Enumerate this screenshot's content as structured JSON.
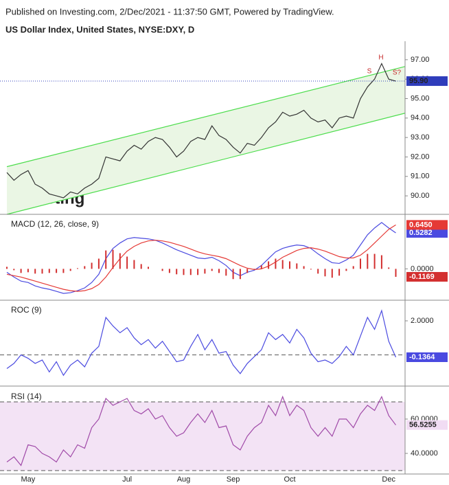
{
  "header": {
    "published": "Published on Investing.com, 2/Dec/2021 - 11:37:50 GMT, Powered by TradingView."
  },
  "watermark": "Investing",
  "chart_data": [
    {
      "type": "line",
      "title": "US Dollar Index, United States, NYSE:DXY, D",
      "categories": [
        null,
        null,
        null,
        "May",
        null,
        null,
        null,
        null,
        null,
        null,
        null,
        null,
        null,
        null,
        null,
        null,
        null,
        "Jul",
        null,
        null,
        null,
        null,
        null,
        null,
        null,
        "Aug",
        null,
        null,
        null,
        null,
        null,
        null,
        "Sep",
        null,
        null,
        null,
        null,
        null,
        null,
        null,
        "Oct",
        null,
        null,
        null,
        null,
        null,
        null,
        null,
        null,
        null,
        null,
        null,
        null,
        null,
        "Dec",
        null
      ],
      "series": [
        {
          "name": "DXY",
          "color": "#333333",
          "last_label": "95.90",
          "label_color": "#2f3dbb",
          "values": [
            91.2,
            90.8,
            91.1,
            91.3,
            90.6,
            90.4,
            90.1,
            90.0,
            89.9,
            90.2,
            90.1,
            90.4,
            90.6,
            90.9,
            92.0,
            91.9,
            91.8,
            92.3,
            92.6,
            92.4,
            92.8,
            93.0,
            92.9,
            92.5,
            92.0,
            92.3,
            92.8,
            93.0,
            92.9,
            93.6,
            93.1,
            92.9,
            92.5,
            92.2,
            92.7,
            92.6,
            93.0,
            93.5,
            93.8,
            94.3,
            94.1,
            94.2,
            94.4,
            94.0,
            93.8,
            93.9,
            93.5,
            94.0,
            94.1,
            94.0,
            95.0,
            95.6,
            96.0,
            96.8,
            96.0,
            95.9
          ]
        }
      ],
      "channel": {
        "color": "#4cdd4c",
        "upper": [
          91.5,
          96.65
        ],
        "lower": [
          89.05,
          94.25
        ]
      },
      "annotations": [
        "S",
        "H",
        "S?"
      ],
      "ylim": [
        89.05,
        97.95
      ],
      "yticks": [
        {
          "value": 90,
          "label": "90.00"
        },
        {
          "value": 91,
          "label": "91.00"
        },
        {
          "value": 92,
          "label": "92.00"
        },
        {
          "value": 93,
          "label": "93.00"
        },
        {
          "value": 94,
          "label": "94.00"
        },
        {
          "value": 95,
          "label": "95.00"
        },
        {
          "value": 96,
          "label": "96.00"
        },
        {
          "value": 97,
          "label": "97.00"
        }
      ]
    },
    {
      "type": "line",
      "title": "MACD (12, 26, close, 9)",
      "series": [
        {
          "name": "MACD",
          "color": "#4a4ae0",
          "last_label": "0.5282",
          "values": [
            -0.05,
            -0.12,
            -0.18,
            -0.2,
            -0.25,
            -0.28,
            -0.3,
            -0.33,
            -0.36,
            -0.35,
            -0.32,
            -0.28,
            -0.2,
            -0.08,
            0.15,
            0.3,
            0.38,
            0.44,
            0.46,
            0.45,
            0.44,
            0.42,
            0.38,
            0.33,
            0.28,
            0.24,
            0.2,
            0.16,
            0.15,
            0.17,
            0.12,
            0.05,
            -0.05,
            -0.1,
            -0.05,
            -0.02,
            0.05,
            0.15,
            0.25,
            0.3,
            0.33,
            0.35,
            0.34,
            0.3,
            0.22,
            0.15,
            0.09,
            0.08,
            0.13,
            0.2,
            0.35,
            0.5,
            0.6,
            0.68,
            0.6,
            0.5282
          ]
        },
        {
          "name": "Signal",
          "color": "#e53935",
          "last_label": "0.6450",
          "values": [
            -0.08,
            -0.1,
            -0.12,
            -0.15,
            -0.18,
            -0.21,
            -0.24,
            -0.27,
            -0.3,
            -0.32,
            -0.33,
            -0.32,
            -0.29,
            -0.23,
            -0.12,
            0.02,
            0.15,
            0.26,
            0.33,
            0.38,
            0.41,
            0.42,
            0.41,
            0.39,
            0.36,
            0.33,
            0.29,
            0.25,
            0.22,
            0.2,
            0.18,
            0.15,
            0.1,
            0.05,
            0.01,
            -0.01,
            0,
            0.04,
            0.1,
            0.17,
            0.22,
            0.27,
            0.3,
            0.31,
            0.29,
            0.26,
            0.22,
            0.18,
            0.16,
            0.16,
            0.2,
            0.28,
            0.38,
            0.48,
            0.58,
            0.645
          ]
        },
        {
          "name": "Histogram",
          "type": "bar",
          "color": "#d32f2f",
          "last_label": "-0.1169",
          "values": [
            0.03,
            -0.02,
            -0.06,
            -0.05,
            -0.07,
            -0.07,
            -0.06,
            -0.06,
            -0.06,
            -0.03,
            0.01,
            0.04,
            0.09,
            0.15,
            0.27,
            0.28,
            0.23,
            0.18,
            0.13,
            0.07,
            0.03,
            0,
            -0.03,
            -0.06,
            -0.08,
            -0.09,
            -0.09,
            -0.09,
            -0.07,
            -0.03,
            -0.06,
            -0.1,
            -0.15,
            -0.15,
            -0.06,
            -0.01,
            0.05,
            0.11,
            0.15,
            0.13,
            0.11,
            0.08,
            0.04,
            -0.01,
            -0.07,
            -0.11,
            -0.13,
            -0.1,
            -0.03,
            0.04,
            0.15,
            0.22,
            0.22,
            0.2,
            0.02,
            -0.1169
          ]
        }
      ],
      "ylim": [
        -0.46,
        0.79
      ],
      "yticks": [
        {
          "value": 0,
          "label": "0.0000"
        }
      ]
    },
    {
      "type": "line",
      "title": "ROC (9)",
      "series": [
        {
          "name": "ROC",
          "color": "#4a4ae0",
          "last_label": "-0.1364",
          "values": [
            -0.8,
            -0.5,
            0,
            -0.2,
            -0.5,
            -0.3,
            -1.0,
            -0.4,
            -1.2,
            -0.6,
            -0.3,
            -0.7,
            0.1,
            0.5,
            2.2,
            1.7,
            1.3,
            1.6,
            1.0,
            0.6,
            0.9,
            0.4,
            0.8,
            0.2,
            -0.4,
            -0.3,
            0.5,
            1.2,
            0.3,
            0.9,
            0.1,
            0.2,
            -0.6,
            -1.1,
            -0.5,
            -0.1,
            0.3,
            1.3,
            0.9,
            1.2,
            0.7,
            1.5,
            1.0,
            0.1,
            -0.4,
            -0.3,
            -0.5,
            -0.1,
            0.5,
            0,
            1.1,
            2.2,
            1.5,
            2.6,
            0.8,
            -0.1364
          ]
        }
      ],
      "zero_line": true,
      "ylim": [
        -1.83,
        3.17
      ],
      "yticks": [
        {
          "value": 2,
          "label": "2.0000"
        }
      ]
    },
    {
      "type": "line",
      "title": "RSI (14)",
      "series": [
        {
          "name": "RSI",
          "color": "#a04aa8",
          "last_label": "56.5255",
          "label_color": "#f1dcf3",
          "values": [
            35,
            38,
            33,
            45,
            44,
            40,
            38,
            35,
            42,
            38,
            45,
            43,
            55,
            60,
            72,
            68,
            70,
            72,
            65,
            63,
            66,
            60,
            62,
            55,
            50,
            52,
            58,
            63,
            58,
            65,
            55,
            56,
            45,
            42,
            50,
            55,
            58,
            68,
            62,
            73,
            62,
            68,
            65,
            55,
            50,
            55,
            50,
            60,
            60,
            55,
            63,
            68,
            65,
            73,
            62,
            56.5255
          ]
        }
      ],
      "band": [
        30,
        70
      ],
      "band_color": "#f3e3f5",
      "ylim": [
        28,
        78.8
      ],
      "yticks": [
        {
          "value": 40,
          "label": "40.0000"
        },
        {
          "value": 60,
          "label": "60.0000"
        }
      ]
    }
  ]
}
